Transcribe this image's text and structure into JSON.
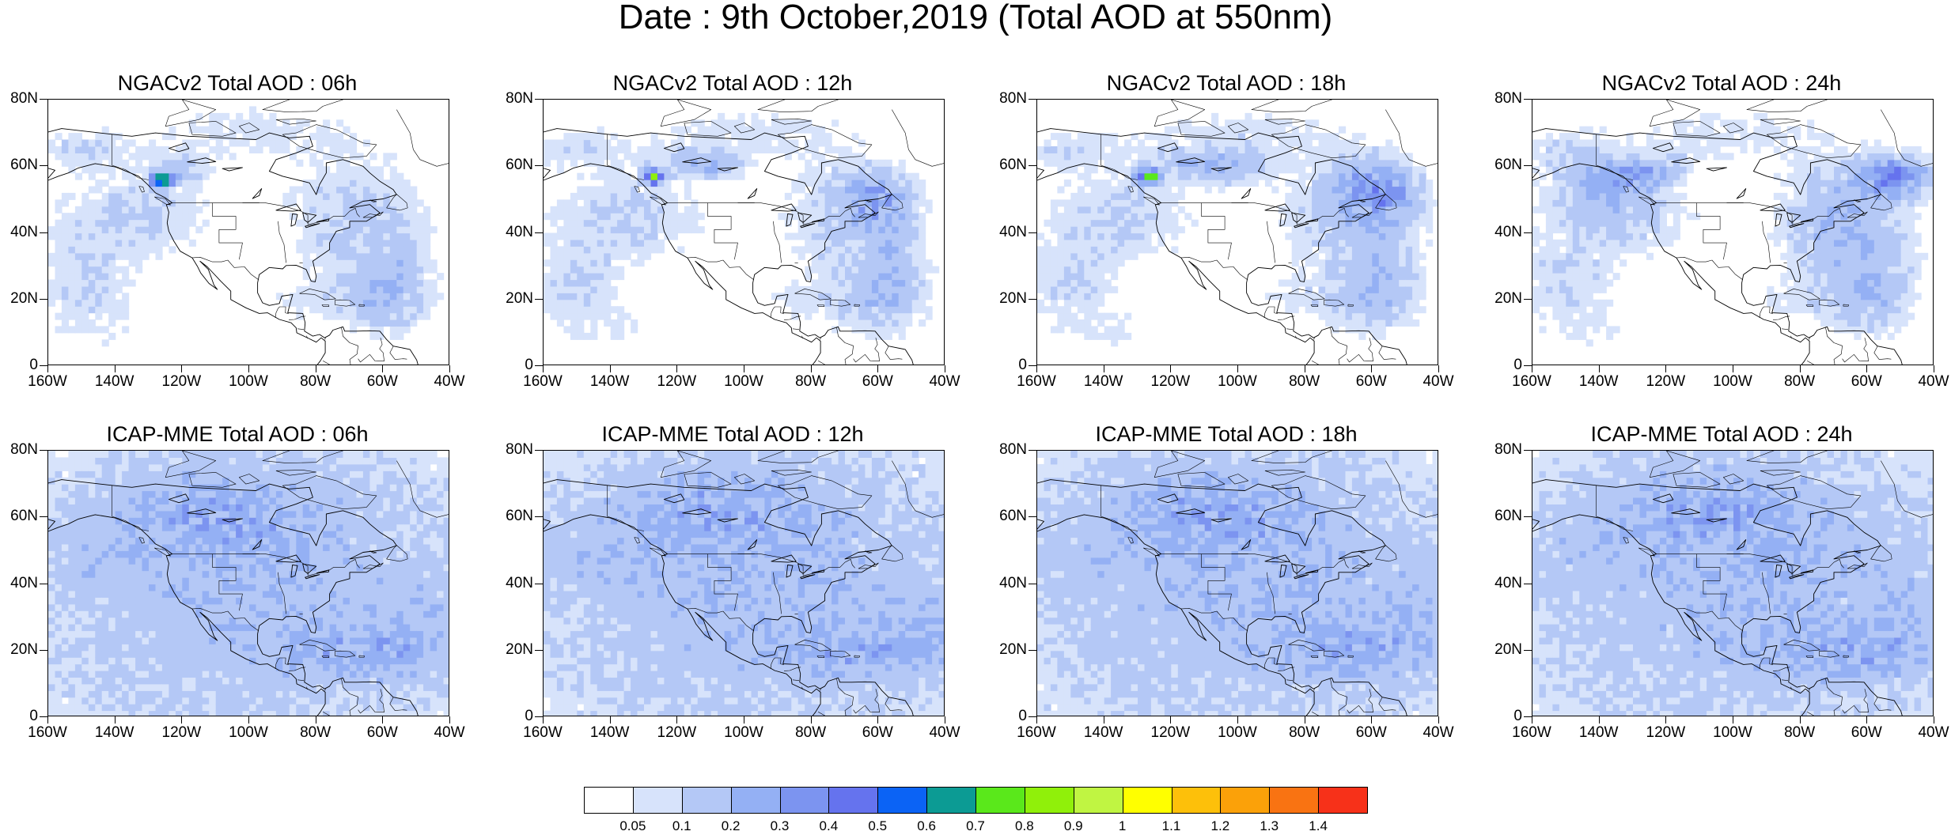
{
  "figure": {
    "title": "Date : 9th October,2019 (Total AOD at 550nm)"
  },
  "axes": {
    "y_labels": [
      "80N",
      "60N",
      "40N",
      "20N",
      "0"
    ],
    "x_labels": [
      "160W",
      "140W",
      "120W",
      "100W",
      "80W",
      "60W",
      "40W"
    ],
    "lat_range": [
      0,
      80
    ],
    "lon_range": [
      -160,
      -40
    ]
  },
  "panels": [
    {
      "title": "NGACv2 Total AOD : 06h",
      "model": "NGACv2",
      "lead": "06h"
    },
    {
      "title": "NGACv2 Total AOD : 12h",
      "model": "NGACv2",
      "lead": "12h"
    },
    {
      "title": "NGACv2 Total AOD : 18h",
      "model": "NGACv2",
      "lead": "18h"
    },
    {
      "title": "NGACv2 Total AOD : 24h",
      "model": "NGACv2",
      "lead": "24h"
    },
    {
      "title": "ICAP-MME Total AOD : 06h",
      "model": "ICAP-MME",
      "lead": "06h"
    },
    {
      "title": "ICAP-MME Total AOD : 12h",
      "model": "ICAP-MME",
      "lead": "12h"
    },
    {
      "title": "ICAP-MME Total AOD : 18h",
      "model": "ICAP-MME",
      "lead": "18h"
    },
    {
      "title": "ICAP-MME Total AOD : 24h",
      "model": "ICAP-MME",
      "lead": "24h"
    }
  ],
  "colorbar": {
    "labels": [
      "0.05",
      "0.1",
      "0.2",
      "0.3",
      "0.4",
      "0.5",
      "0.6",
      "0.7",
      "0.8",
      "0.9",
      "1",
      "1.1",
      "1.2",
      "1.3",
      "1.4"
    ],
    "colors": [
      "#ffffff",
      "#d7e3fb",
      "#b4c8f6",
      "#94b0f4",
      "#7c94f0",
      "#6573ee",
      "#0b63f5",
      "#0c9b94",
      "#5ae81b",
      "#90f00a",
      "#c0f542",
      "#ffff00",
      "#fdc00a",
      "#fba109",
      "#f97312",
      "#f73119"
    ]
  }
}
